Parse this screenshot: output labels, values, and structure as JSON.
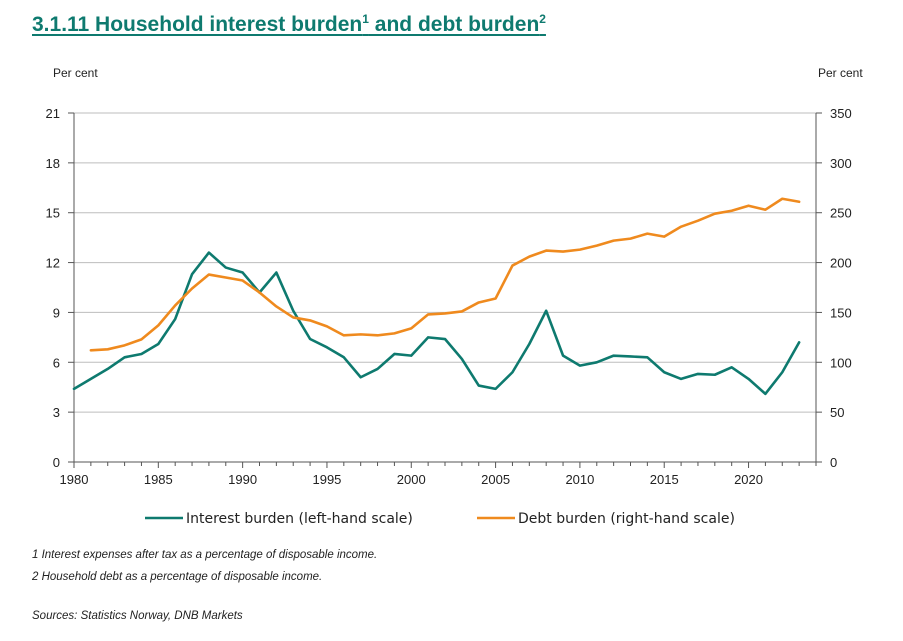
{
  "title": {
    "text1": "3.1.11  Household interest burden",
    "sup1": "1",
    "text2": " and debt burden",
    "sup2": "2"
  },
  "units": {
    "left": "Per cent",
    "right": "Per cent"
  },
  "footnotes": {
    "note1": "1  Interest expenses after tax as a percentage of disposable income.",
    "note2": "2  Household debt as a percentage of disposable income.",
    "sources": "Sources: Statistics Norway, DNB Markets"
  },
  "chart_data": {
    "type": "line",
    "x_range": [
      1980,
      2024
    ],
    "x_ticks": [
      "1980",
      "1985",
      "1990",
      "1995",
      "2000",
      "2005",
      "2010",
      "2015",
      "2020"
    ],
    "y_left": {
      "range": [
        0,
        21
      ],
      "ticks": [
        "0",
        "3",
        "6",
        "9",
        "12",
        "15",
        "18",
        "21"
      ]
    },
    "y_right": {
      "range": [
        0,
        350
      ],
      "ticks": [
        "0",
        "50",
        "100",
        "150",
        "200",
        "250",
        "300",
        "350"
      ]
    },
    "grid": true,
    "legend_position": "bottom",
    "series": [
      {
        "name": "Interest burden (left-hand scale)",
        "axis": "left",
        "color": "#0e7a6f",
        "x": [
          1980,
          1981,
          1982,
          1983,
          1984,
          1985,
          1986,
          1987,
          1988,
          1989,
          1990,
          1991,
          1992,
          1993,
          1994,
          1995,
          1996,
          1997,
          1998,
          1999,
          2000,
          2001,
          2002,
          2003,
          2004,
          2005,
          2006,
          2007,
          2008,
          2009,
          2010,
          2011,
          2012,
          2013,
          2014,
          2015,
          2016,
          2017,
          2018,
          2019,
          2020,
          2021,
          2022,
          2023
        ],
        "y": [
          4.4,
          5.0,
          5.6,
          6.3,
          6.5,
          7.1,
          8.6,
          11.3,
          12.6,
          11.7,
          11.4,
          10.2,
          11.4,
          9.1,
          7.4,
          6.9,
          6.3,
          5.1,
          5.6,
          6.5,
          6.4,
          7.5,
          7.4,
          6.2,
          4.6,
          4.4,
          5.4,
          7.1,
          9.1,
          6.4,
          5.8,
          6.0,
          6.4,
          6.35,
          6.3,
          5.4,
          5.0,
          5.3,
          5.25,
          5.7,
          5.0,
          4.1,
          5.4,
          7.2
        ]
      },
      {
        "name": "Debt burden (right-hand scale)",
        "axis": "right",
        "color": "#ef8a1e",
        "x": [
          1981,
          1982,
          1983,
          1984,
          1985,
          1986,
          1987,
          1988,
          1989,
          1990,
          1991,
          1992,
          1993,
          1994,
          1995,
          1996,
          1997,
          1998,
          1999,
          2000,
          2001,
          2002,
          2003,
          2004,
          2005,
          2006,
          2007,
          2008,
          2009,
          2010,
          2011,
          2012,
          2013,
          2014,
          2015,
          2016,
          2017,
          2018,
          2019,
          2020,
          2021,
          2022,
          2023
        ],
        "y": [
          112,
          113,
          117,
          123,
          137,
          157,
          174,
          188,
          185,
          182,
          170,
          156,
          145,
          142,
          136,
          127,
          128,
          127,
          129,
          134,
          148,
          149,
          151,
          160,
          164,
          197,
          206,
          212,
          211,
          213,
          217,
          222,
          224,
          229,
          226,
          236,
          242,
          249,
          252,
          257,
          253,
          264,
          261
        ]
      }
    ]
  }
}
